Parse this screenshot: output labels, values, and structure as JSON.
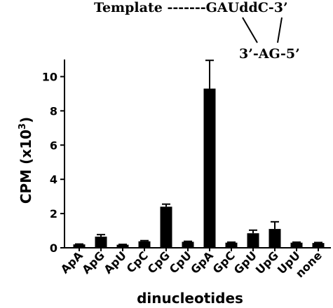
{
  "template_diagram": {
    "line1": "Template -------GAUddC-3’",
    "line2": "3’-AG-5’"
  },
  "chart_data": {
    "type": "bar",
    "title": "",
    "xlabel": "dinucleotides",
    "ylabel": "CPM (x10",
    "ylabel_superscript": "3",
    "ylabel_suffix": ")",
    "ylim": [
      0,
      11
    ],
    "yticks": [
      0,
      2,
      4,
      6,
      8,
      10
    ],
    "grid": false,
    "categories": [
      "ApA",
      "ApG",
      "ApU",
      "CpC",
      "CpG",
      "CpU",
      "GpA",
      "GpC",
      "GpU",
      "UpG",
      "UpU",
      "none"
    ],
    "values": [
      0.2,
      0.65,
      0.18,
      0.38,
      2.4,
      0.35,
      9.3,
      0.3,
      0.85,
      1.1,
      0.3,
      0.28
    ],
    "errors": [
      0.02,
      0.12,
      0.02,
      0.04,
      0.15,
      0.03,
      1.65,
      0.03,
      0.18,
      0.42,
      0.03,
      0.03
    ],
    "bar_color": "#000000"
  }
}
